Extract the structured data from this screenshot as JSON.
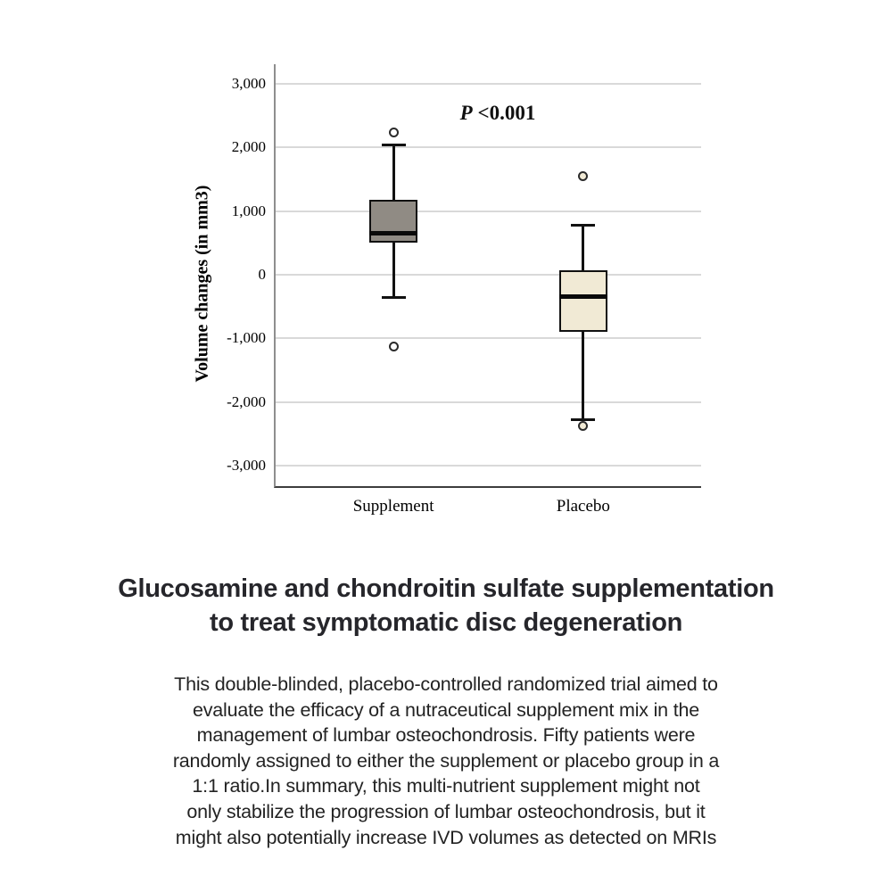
{
  "chart_data": {
    "type": "boxplot",
    "ylabel": "Volume changes (in mm3)",
    "xlabel": "",
    "annotation": {
      "prefix": "P",
      "value": "<0.001"
    },
    "grid": true,
    "legend": "none",
    "ylim": [
      -3320,
      3310
    ],
    "y_ticks": [
      {
        "label": "3,000",
        "value": 3000
      },
      {
        "label": "2,000",
        "value": 2000
      },
      {
        "label": "1,000",
        "value": 1000
      },
      {
        "label": "0",
        "value": 0
      },
      {
        "label": "-1,000",
        "value": -1000
      },
      {
        "label": "-2,000",
        "value": -2000
      },
      {
        "label": "-3,000",
        "value": -3000
      }
    ],
    "categories": [
      "Supplement",
      "Placebo"
    ],
    "series": [
      {
        "name": "Supplement",
        "whisker_low": -350,
        "q1": 500,
        "median": 650,
        "q3": 1180,
        "whisker_high": 2040,
        "outliers": [
          2240,
          -1120
        ],
        "box_color": "#908b84",
        "outlier_fill": "#ffffff",
        "x_frac": 0.277
      },
      {
        "name": "Placebo",
        "whisker_low": -2270,
        "q1": -890,
        "median": -340,
        "q3": 70,
        "whisker_high": 780,
        "outliers": [
          1550,
          -2380
        ],
        "box_color": "#f1ead5",
        "outlier_fill": "#f1ead5",
        "x_frac": 0.723
      }
    ]
  },
  "caption": {
    "title_lines": [
      "Glucosamine and chondroitin sulfate supplementation",
      "to treat symptomatic disc degeneration"
    ],
    "body_lines": [
      "This double-blinded, placebo-controlled randomized trial aimed to",
      "evaluate the efficacy of a nutraceutical supplement mix in the",
      "management of lumbar osteochondrosis. Fifty patients were",
      "randomly assigned to either the supplement or placebo group in a",
      "1:1 ratio.In summary, this multi-nutrient supplement might not",
      "only stabilize the progression of lumbar osteochondrosis, but it",
      "might also potentially increase IVD volumes as detected on MRIs"
    ]
  }
}
